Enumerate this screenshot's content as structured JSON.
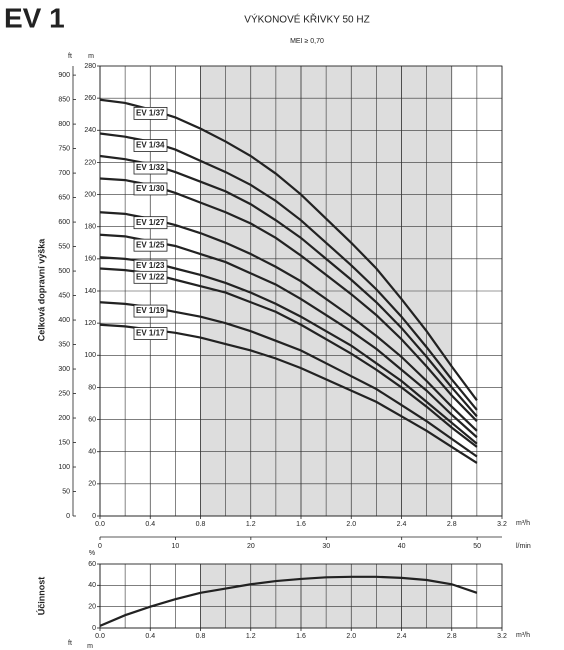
{
  "heading": "EV 1",
  "chart_data": [
    {
      "type": "line",
      "title": "VÝKONOVÉ KŘIVKY 50 HZ",
      "subtitle": "MEI ≥ 0,70",
      "ylabel": "Celková dopravní výška",
      "yunit": "m",
      "y2unit": "ft",
      "xunit": "m³/h",
      "x2unit": "l/min",
      "x": [
        0,
        0.2,
        0.4,
        0.6,
        0.8,
        1.0,
        1.2,
        1.4,
        1.6,
        1.8,
        2.0,
        2.2,
        2.4,
        2.6,
        2.8,
        3.0
      ],
      "series": [
        {
          "name": "EV 1/37",
          "color": "#222222",
          "values": [
            259,
            257,
            253,
            248,
            241,
            233,
            224,
            213,
            200,
            185,
            170,
            154,
            135,
            115,
            93,
            72
          ]
        },
        {
          "name": "EV 1/34",
          "color": "#222222",
          "values": [
            238,
            236,
            233,
            228,
            221,
            214,
            206,
            196,
            184,
            170,
            156,
            141,
            124,
            105,
            85,
            66
          ]
        },
        {
          "name": "EV 1/32",
          "color": "#222222",
          "values": [
            224,
            222,
            219,
            214,
            208,
            202,
            194,
            184,
            173,
            160,
            147,
            133,
            117,
            99,
            80,
            62
          ]
        },
        {
          "name": "EV 1/30",
          "color": "#222222",
          "values": [
            210,
            209,
            206,
            201,
            195,
            189,
            182,
            173,
            162,
            150,
            138,
            125,
            110,
            93,
            75,
            59
          ]
        },
        {
          "name": "EV 1/27",
          "color": "#222222",
          "values": [
            189,
            188,
            185,
            181,
            176,
            170,
            163,
            155,
            146,
            135,
            124,
            112,
            99,
            84,
            68,
            53
          ]
        },
        {
          "name": "EV 1/25",
          "color": "#222222",
          "values": [
            175,
            174,
            171,
            168,
            163,
            158,
            151,
            144,
            135,
            125,
            115,
            104,
            91,
            78,
            63,
            49
          ]
        },
        {
          "name": "EV 1/23",
          "color": "#222222",
          "values": [
            161,
            160,
            158,
            154,
            150,
            145,
            139,
            132,
            124,
            115,
            106,
            95,
            84,
            71,
            58,
            45
          ]
        },
        {
          "name": "EV 1/22",
          "color": "#222222",
          "values": [
            154,
            153,
            151,
            147,
            143,
            139,
            133,
            127,
            119,
            110,
            101,
            91,
            80,
            68,
            55,
            43
          ]
        },
        {
          "name": "EV 1/19",
          "color": "#222222",
          "values": [
            133,
            132,
            130,
            127,
            124,
            120,
            115,
            109,
            103,
            95,
            87,
            79,
            69,
            59,
            48,
            37
          ]
        },
        {
          "name": "EV 1/17",
          "color": "#222222",
          "values": [
            119,
            118,
            116,
            114,
            111,
            107,
            103,
            98,
            92,
            85,
            78,
            71,
            62,
            53,
            43,
            33
          ]
        }
      ],
      "xlim": [
        0,
        3.2
      ],
      "xticks": [
        {
          "value": 0,
          "label": "0.0"
        },
        0.4,
        0.8,
        1.2,
        1.6,
        {
          "value": 2,
          "label": "2.0"
        },
        2.4,
        2.8,
        3.2
      ],
      "x2lim": [
        0,
        53.3
      ],
      "x2ticks": [
        0,
        10,
        20,
        30,
        40,
        50
      ],
      "ylim": [
        0,
        280
      ],
      "yticks": [
        0,
        20,
        40,
        60,
        80,
        100,
        120,
        140,
        160,
        180,
        200,
        220,
        240,
        260,
        280
      ],
      "y2lim": [
        0,
        918.6
      ],
      "y2ticks": [
        0,
        50,
        100,
        150,
        200,
        250,
        300,
        350,
        400,
        450,
        500,
        550,
        600,
        650,
        700,
        750,
        800,
        850,
        900
      ],
      "shaded_range": [
        0.8,
        2.8
      ],
      "shade_color": "#dddddd",
      "grid": true
    },
    {
      "type": "line",
      "ylabel": "Účinnost",
      "yunit": "%",
      "xunit": "m³/h",
      "trailing_units": [
        "ft",
        "m"
      ],
      "x": [
        0,
        0.2,
        0.4,
        0.6,
        0.8,
        1.0,
        1.2,
        1.4,
        1.6,
        1.8,
        2.0,
        2.2,
        2.4,
        2.6,
        2.8,
        3.0
      ],
      "series": [
        {
          "color": "#222222",
          "values": [
            2,
            12,
            20,
            27,
            33,
            37,
            41,
            44,
            46,
            47.5,
            48,
            48,
            47,
            45,
            41,
            33
          ]
        }
      ],
      "xlim": [
        0,
        3.2
      ],
      "xticks": [
        {
          "value": 0,
          "label": "0.0"
        },
        0.4,
        0.8,
        1.2,
        1.6,
        {
          "value": 2,
          "label": "2.0"
        },
        2.4,
        2.8,
        3.2
      ],
      "ylim": [
        0,
        60
      ],
      "yticks": [
        0,
        20,
        40,
        60
      ],
      "shaded_range": [
        0.8,
        2.8
      ],
      "shade_color": "#dddddd",
      "grid": true
    }
  ]
}
